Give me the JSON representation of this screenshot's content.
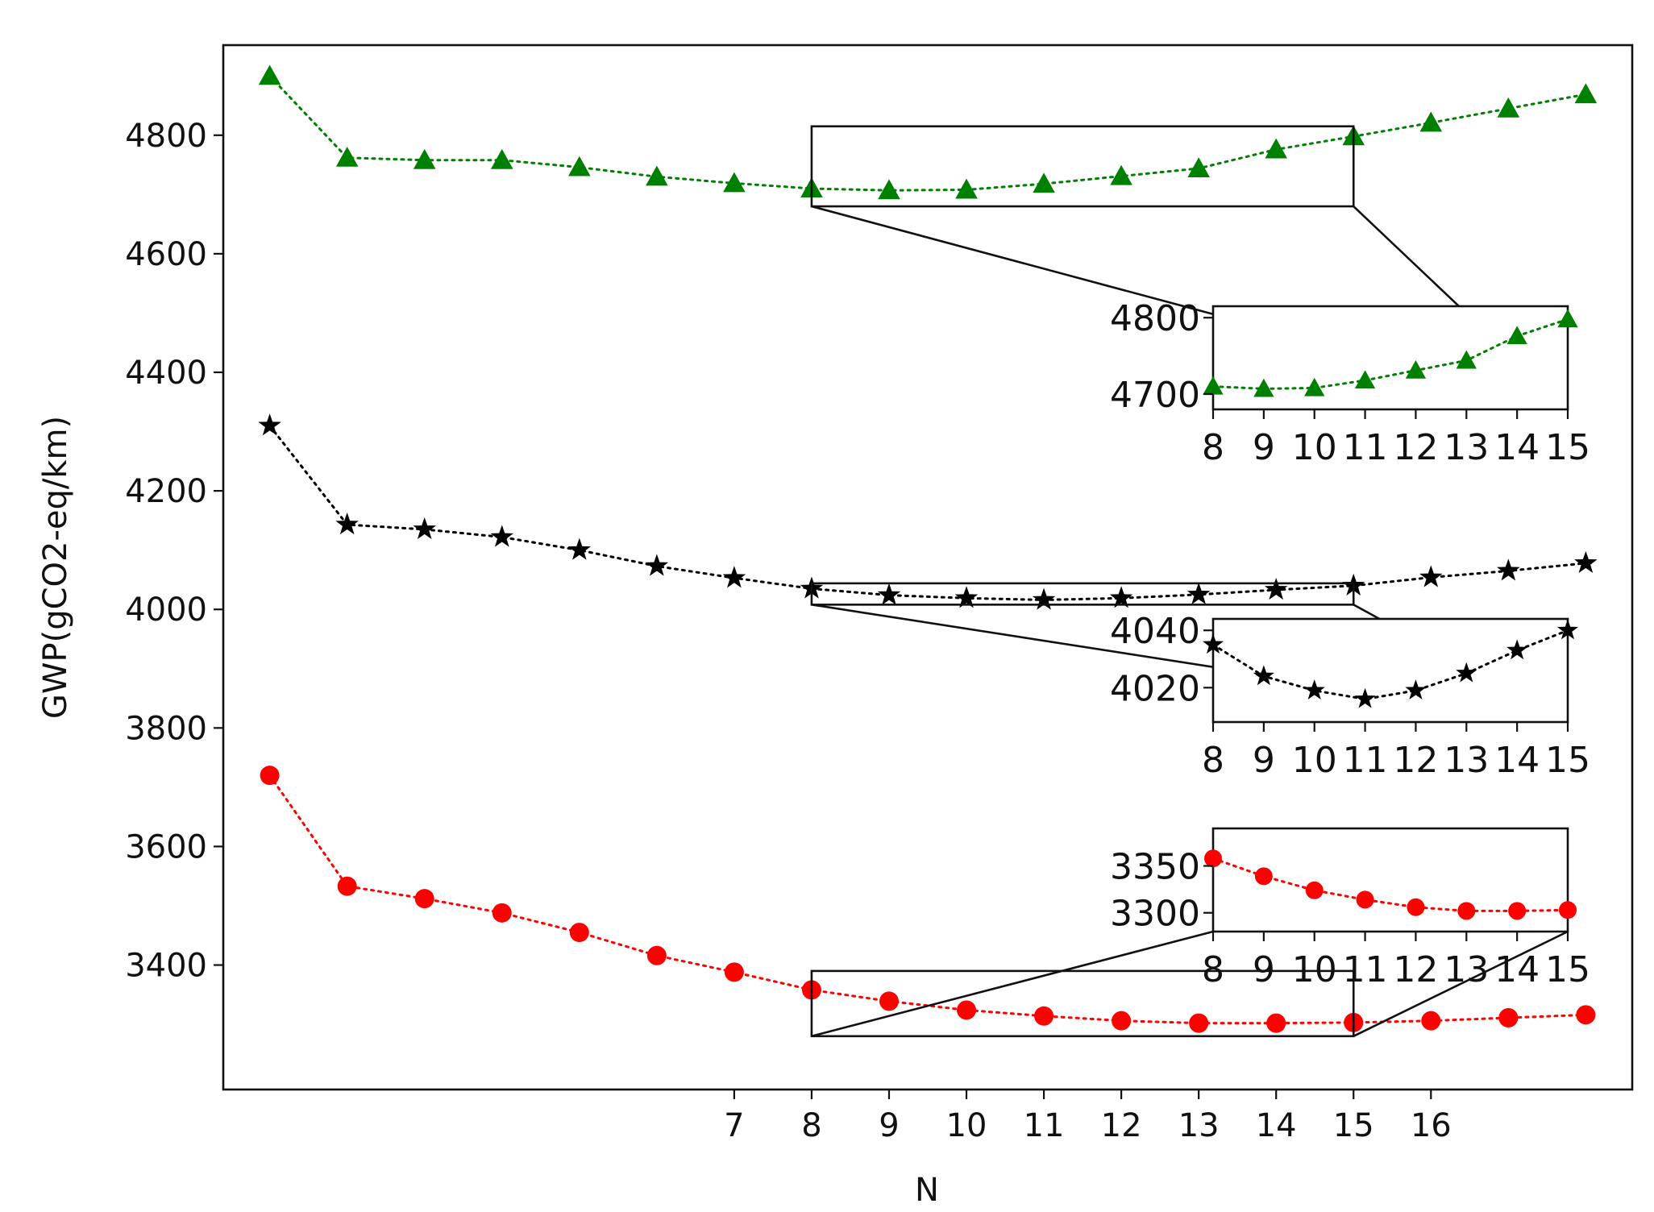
{
  "chart_data": {
    "type": "line",
    "title": "",
    "xlabel": "N",
    "ylabel": "GWP(gCO2-eq/km)",
    "x": [
      1,
      2,
      3,
      4,
      5,
      6,
      7,
      8,
      9,
      10,
      11,
      12,
      13,
      14,
      15,
      16,
      17,
      18
    ],
    "xticks": [
      7,
      8,
      9,
      10,
      11,
      12,
      13,
      14,
      15,
      16
    ],
    "xlim": [
      0.4,
      18.6
    ],
    "yticks": [
      3400,
      3600,
      3800,
      4000,
      4200,
      4400,
      4600,
      4800
    ],
    "ylim": [
      3190,
      4952
    ],
    "grid": false,
    "series": [
      {
        "marker": "triangle",
        "color": "#008000",
        "linestyle": "dotted",
        "values": [
          4900,
          4762,
          4758,
          4758,
          4746,
          4730,
          4719,
          4710,
          4707,
          4708,
          4718,
          4731,
          4744,
          4776,
          4798,
          4821,
          4845,
          4869
        ]
      },
      {
        "marker": "star",
        "color": "#000000",
        "linestyle": "dotted",
        "values": [
          4310,
          4143,
          4135,
          4122,
          4100,
          4073,
          4053,
          4035,
          4024,
          4019,
          4016,
          4019,
          4025,
          4033,
          4040,
          4054,
          4065,
          4078
        ]
      },
      {
        "marker": "circle",
        "color": "#ff0000",
        "linestyle": "dotted",
        "values": [
          3720,
          3533,
          3512,
          3488,
          3455,
          3416,
          3388,
          3358,
          3339,
          3324,
          3314,
          3306,
          3302,
          3302,
          3303,
          3306,
          3311,
          3316
        ]
      }
    ],
    "insets": [
      {
        "series_index": 0,
        "xticks": [
          8,
          9,
          10,
          11,
          12,
          13,
          14,
          15
        ],
        "yticks": [
          4700,
          4800
        ],
        "xlim": [
          8,
          15
        ],
        "ylim": [
          4680,
          4815
        ]
      },
      {
        "series_index": 1,
        "xticks": [
          8,
          9,
          10,
          11,
          12,
          13,
          14,
          15
        ],
        "yticks": [
          4020,
          4040
        ],
        "xlim": [
          8,
          15
        ],
        "ylim": [
          4008,
          4044
        ]
      },
      {
        "series_index": 2,
        "xticks": [
          8,
          9,
          10,
          11,
          12,
          13,
          14,
          15
        ],
        "yticks": [
          3300,
          3350
        ],
        "xlim": [
          8,
          15
        ],
        "ylim": [
          3280,
          3390
        ]
      }
    ]
  }
}
